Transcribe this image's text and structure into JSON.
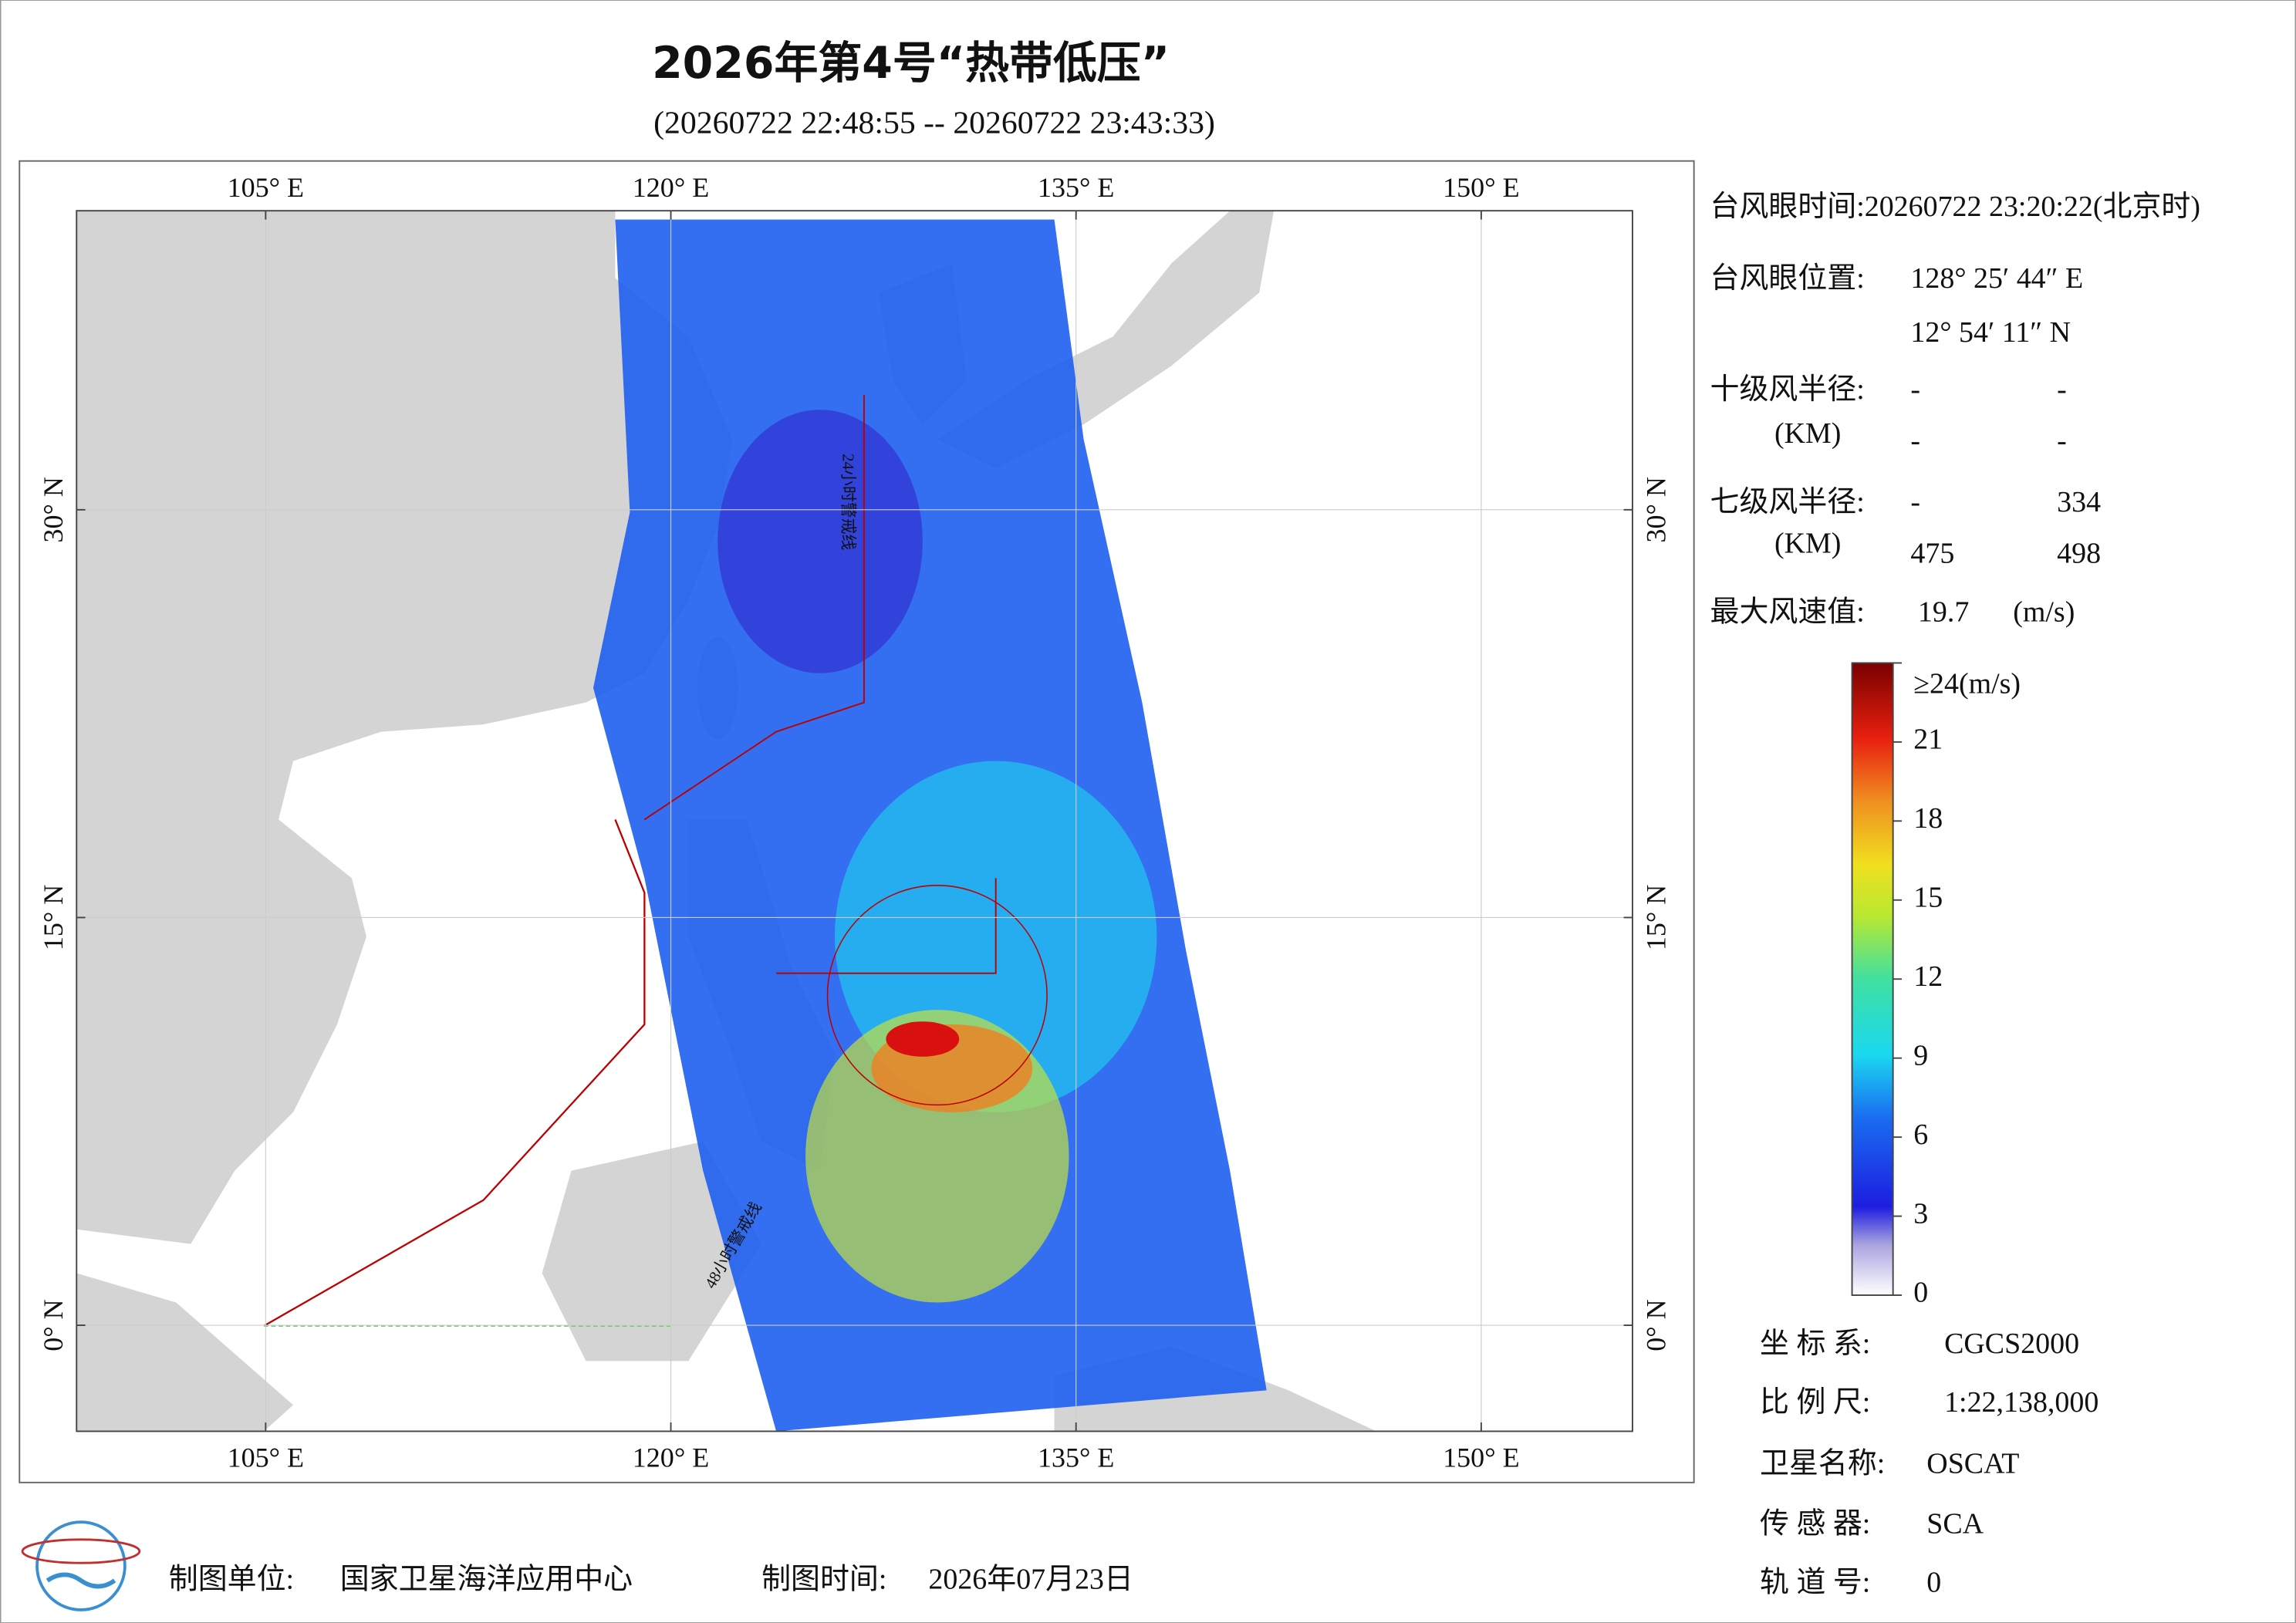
{
  "header": {
    "title": "2026年第4号“热带低压”",
    "subtitle": "(20260722 22:48:55 -- 20260722 23:43:33)"
  },
  "map": {
    "lon_range": [
      98,
      155.6
    ],
    "lat_range": [
      -3.9,
      41
    ],
    "lon_ticks": [
      {
        "value": 105,
        "label": "105° E"
      },
      {
        "value": 120,
        "label": "120° E"
      },
      {
        "value": 135,
        "label": "135° E"
      },
      {
        "value": 150,
        "label": "150° E"
      }
    ],
    "lat_ticks": [
      {
        "value": 0,
        "label": "0° N"
      },
      {
        "value": 15,
        "label": "15° N"
      },
      {
        "value": 30,
        "label": "30° N"
      }
    ],
    "line_24h": "24小时警戒线",
    "line_48h": "48小时警戒线"
  },
  "info": {
    "eye_time": "台风眼时间:20260722 23:20:22(北京时)",
    "eye_position_label": "台风眼位置:",
    "eye_lon": "128° 25′ 44″ E",
    "eye_lat": "12° 54′ 11″ N",
    "r10_label": "十级风半径:",
    "r10_unit": "(KM)",
    "r10_values": [
      "-",
      "-",
      "-",
      "-"
    ],
    "r7_label": "七级风半径:",
    "r7_unit": "(KM)",
    "r7_values": [
      "-",
      334,
      475,
      498
    ],
    "max_wind_label": "最大风速值:",
    "max_wind": 19.7,
    "max_wind_unit": "(m/s)"
  },
  "colorbar": {
    "range": [
      0,
      24
    ],
    "ticks": [
      0,
      3,
      6,
      9,
      12,
      15,
      18,
      21,
      {
        "value": 24,
        "label": "≥24(m/s)"
      }
    ]
  },
  "meta": {
    "crs_label": "坐 标 系:",
    "crs": "CGCS2000",
    "scale_label": "比 例 尺:",
    "scale": "1:22,138,000",
    "satellite_label": "卫星名称:",
    "satellite": "OSCAT",
    "sensor_label": "传 感 器:",
    "sensor": "SCA",
    "orbit_label": "轨 道 号:",
    "orbit": "0"
  },
  "footer": {
    "maker_label": "制图单位:",
    "maker": "国家卫星海洋应用中心",
    "date_label": "制图时间:",
    "date": "2026年07月23日"
  }
}
